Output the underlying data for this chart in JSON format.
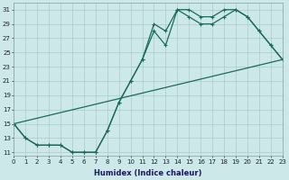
{
  "xlabel": "Humidex (Indice chaleur)",
  "bg_color": "#cce8e8",
  "grid_color": "#aacccc",
  "line_color": "#1a6b5a",
  "line1_x": [
    0,
    1,
    2,
    3,
    4,
    5,
    6,
    7,
    8,
    9,
    10,
    11,
    12,
    13,
    14,
    15,
    16,
    17,
    18,
    19,
    20,
    21,
    22,
    23
  ],
  "line1_y": [
    15,
    13,
    12,
    12,
    12,
    11,
    11,
    11,
    14,
    18,
    21,
    24,
    29,
    28,
    31,
    31,
    30,
    30,
    31,
    31,
    30,
    28,
    26,
    24
  ],
  "line2_x": [
    0,
    1,
    2,
    3,
    4,
    5,
    6,
    7,
    8,
    9,
    10,
    11,
    12,
    13,
    14,
    15,
    16,
    17,
    18,
    19,
    20,
    21,
    22,
    23
  ],
  "line2_y": [
    15,
    13,
    12,
    12,
    12,
    11,
    11,
    11,
    14,
    18,
    21,
    24,
    28,
    26,
    31,
    30,
    29,
    29,
    30,
    31,
    30,
    28,
    26,
    24
  ],
  "line3_x": [
    0,
    23
  ],
  "line3_y": [
    15,
    24
  ],
  "xlim": [
    0,
    23
  ],
  "ylim": [
    10.5,
    32
  ],
  "yticks": [
    11,
    13,
    15,
    17,
    19,
    21,
    23,
    25,
    27,
    29,
    31
  ],
  "xticks": [
    0,
    1,
    2,
    3,
    4,
    5,
    6,
    7,
    8,
    9,
    10,
    11,
    12,
    13,
    14,
    15,
    16,
    17,
    18,
    19,
    20,
    21,
    22,
    23
  ],
  "tick_fontsize": 5.0,
  "xlabel_fontsize": 6.0,
  "line_width": 0.9,
  "marker_size": 2.0
}
